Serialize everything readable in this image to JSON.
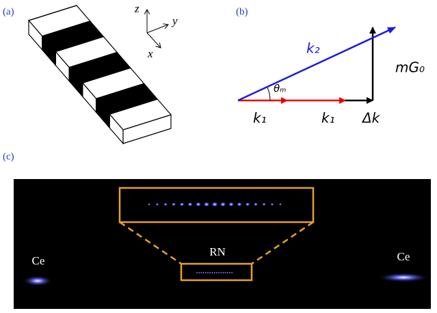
{
  "panels": {
    "a": {
      "label": "(a)",
      "axes": {
        "z": "z",
        "y": "y",
        "x": "x"
      }
    },
    "b": {
      "label": "(b)",
      "vectors": {
        "k2": "k₂",
        "theta": "θₘ",
        "k1_first": "k₁",
        "k1_second": "k₁",
        "delta_k": "Δk",
        "mG0": "mG₀"
      }
    },
    "c": {
      "label": "(c)",
      "center": "RN",
      "left": "Ce",
      "right": "Ce"
    }
  }
}
